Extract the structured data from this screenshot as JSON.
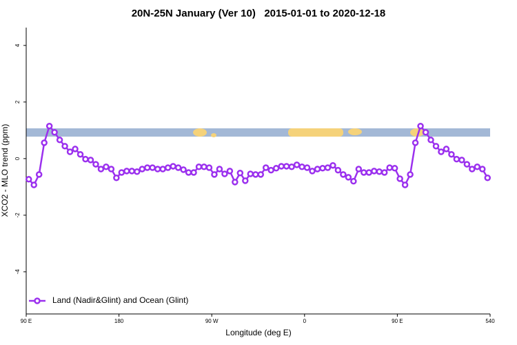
{
  "chart_data": {
    "type": "line",
    "title": "20N-25N January (Ver 10)   2015-01-01 to 2020-12-18",
    "x_label": "Longitude (deg E)",
    "y_label": "XCO2 - MLO trend (ppm)",
    "xlim": [
      90,
      540
    ],
    "ylim": [
      -5.49,
      4.63
    ],
    "xticks": [
      {
        "value": 90,
        "label": "90 E"
      },
      180,
      {
        "value": 270,
        "label": "90 W"
      },
      {
        "value": 360,
        "label": "0"
      },
      {
        "value": 450,
        "label": "90 E"
      },
      540
    ],
    "yticks": [
      -4,
      -2,
      0,
      2,
      4
    ],
    "legend": "bottom-left",
    "x": [
      92.5,
      97.5,
      102.5,
      107.5,
      112.5,
      117.5,
      122.5,
      127.5,
      132.5,
      137.5,
      142.5,
      147.5,
      152.5,
      157.5,
      162.5,
      167.5,
      172.5,
      177.5,
      182.5,
      187.5,
      192.5,
      197.5,
      202.5,
      207.5,
      212.5,
      217.5,
      222.5,
      227.5,
      232.5,
      237.5,
      242.5,
      247.5,
      252.5,
      257.5,
      262.5,
      267.5,
      272.5,
      277.5,
      282.5,
      287.5,
      292.5,
      297.5,
      302.5,
      307.5,
      312.5,
      317.5,
      322.5,
      327.5,
      332.5,
      337.5,
      342.5,
      347.5,
      352.5,
      357.5,
      362.5,
      367.5,
      372.5,
      377.5,
      382.5,
      387.5,
      392.5,
      397.5,
      402.5,
      407.5,
      412.5,
      417.5,
      422.5,
      427.5,
      432.5,
      437.5,
      442.5,
      447.5,
      452.5,
      457.5,
      462.5,
      467.5,
      472.5,
      477.5,
      482.5,
      487.5,
      492.5,
      497.5,
      502.5,
      507.5,
      512.5,
      517.5,
      522.5,
      527.5,
      532.5,
      537.5
    ],
    "series": [
      {
        "name": "Land (Nadir&Glint) and Ocean (Glint)",
        "color": "#9b30ee",
        "values": [
          -0.73,
          -0.93,
          -0.56,
          0.56,
          1.15,
          0.93,
          0.66,
          0.44,
          0.24,
          0.34,
          0.15,
          -0.02,
          -0.05,
          -0.2,
          -0.37,
          -0.29,
          -0.37,
          -0.68,
          -0.49,
          -0.44,
          -0.44,
          -0.46,
          -0.37,
          -0.32,
          -0.32,
          -0.37,
          -0.37,
          -0.32,
          -0.27,
          -0.32,
          -0.39,
          -0.49,
          -0.49,
          -0.29,
          -0.29,
          -0.32,
          -0.56,
          -0.37,
          -0.54,
          -0.44,
          -0.83,
          -0.51,
          -0.78,
          -0.54,
          -0.56,
          -0.56,
          -0.32,
          -0.41,
          -0.34,
          -0.27,
          -0.27,
          -0.29,
          -0.22,
          -0.29,
          -0.32,
          -0.44,
          -0.37,
          -0.34,
          -0.32,
          -0.24,
          -0.41,
          -0.56,
          -0.66,
          -0.8,
          -0.37,
          -0.49,
          -0.49,
          -0.44,
          -0.46,
          -0.49,
          -0.32,
          -0.34,
          -0.71,
          -0.93,
          -0.56,
          0.56,
          1.15,
          0.93,
          0.66,
          0.44,
          0.24,
          0.34,
          0.15,
          -0.02,
          -0.05,
          -0.2,
          -0.37,
          -0.29,
          -0.37,
          -0.68
        ]
      }
    ]
  }
}
